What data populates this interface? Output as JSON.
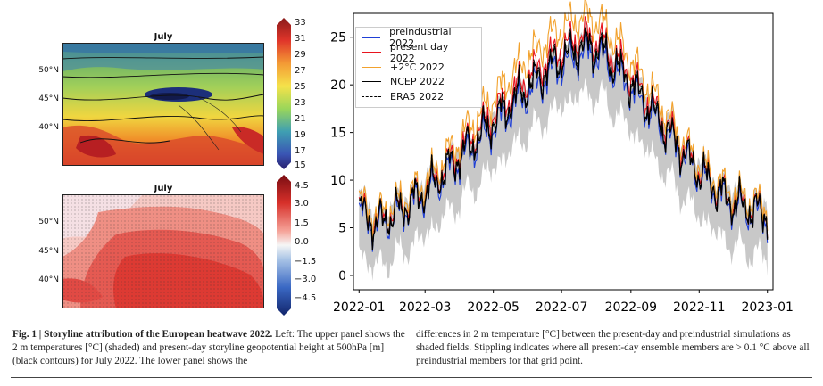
{
  "panels": {
    "upper": {
      "title": "July",
      "lat_ticks": [
        "50°N",
        "45°N",
        "40°N"
      ],
      "colorbar_ticks": [
        "33",
        "31",
        "29",
        "27",
        "25",
        "23",
        "21",
        "19",
        "17",
        "15"
      ]
    },
    "lower": {
      "title": "July",
      "lat_ticks": [
        "50°N",
        "45°N",
        "40°N"
      ],
      "colorbar_ticks": [
        "4.5",
        "3.0",
        "1.5",
        "0.0",
        "−1.5",
        "−3.0",
        "−4.5"
      ]
    }
  },
  "chart_data": {
    "type": "line",
    "y_ticks": [
      0,
      5,
      10,
      15,
      20,
      25
    ],
    "ylim": [
      -1.5,
      27.5
    ],
    "x_ticks": [
      "2022-01",
      "2022-03",
      "2022-05",
      "2022-07",
      "2022-09",
      "2022-11",
      "2023-01"
    ],
    "x_tick_days": [
      0,
      59,
      120,
      181,
      243,
      304,
      365
    ],
    "legend_position": "top-left",
    "series": [
      {
        "name": "preindustrial 2022",
        "color": "#1f3fd6"
      },
      {
        "name": "present day 2022",
        "color": "#e8141e"
      },
      {
        "name": "+2°C 2022",
        "color": "#f2a22e"
      },
      {
        "name": "NCEP 2022",
        "color": "#000000"
      },
      {
        "name": "ERA5 2022",
        "color": "#000000",
        "dashed": true
      }
    ],
    "ensemble_band_color": "#c8c8c8",
    "climatology": {
      "day": [
        0,
        15,
        30,
        60,
        90,
        120,
        150,
        180,
        200,
        215,
        240,
        270,
        300,
        330,
        365
      ],
      "value": [
        6.5,
        5.0,
        6.0,
        8.5,
        12.0,
        15.5,
        19.0,
        22.0,
        23.3,
        23.0,
        20.0,
        15.5,
        11.0,
        7.5,
        6.0
      ]
    }
  },
  "caption": {
    "fig_label": "Fig. 1 | Storyline attribution of the European heatwave 2022.",
    "left_text": " Left: The upper panel shows the 2 m temperatures [°C] (shaded) and present-day storyline geopotential height at 500hPa [m] (black contours) for July 2022. The lower panel shows the",
    "right_text": "differences in 2 m temperature [°C] between the present-day and preindustrial simulations as shaded fields. Stippling indicates where all present-day ensemble members are > 0.1 °C above all preindustrial members for that grid point."
  }
}
